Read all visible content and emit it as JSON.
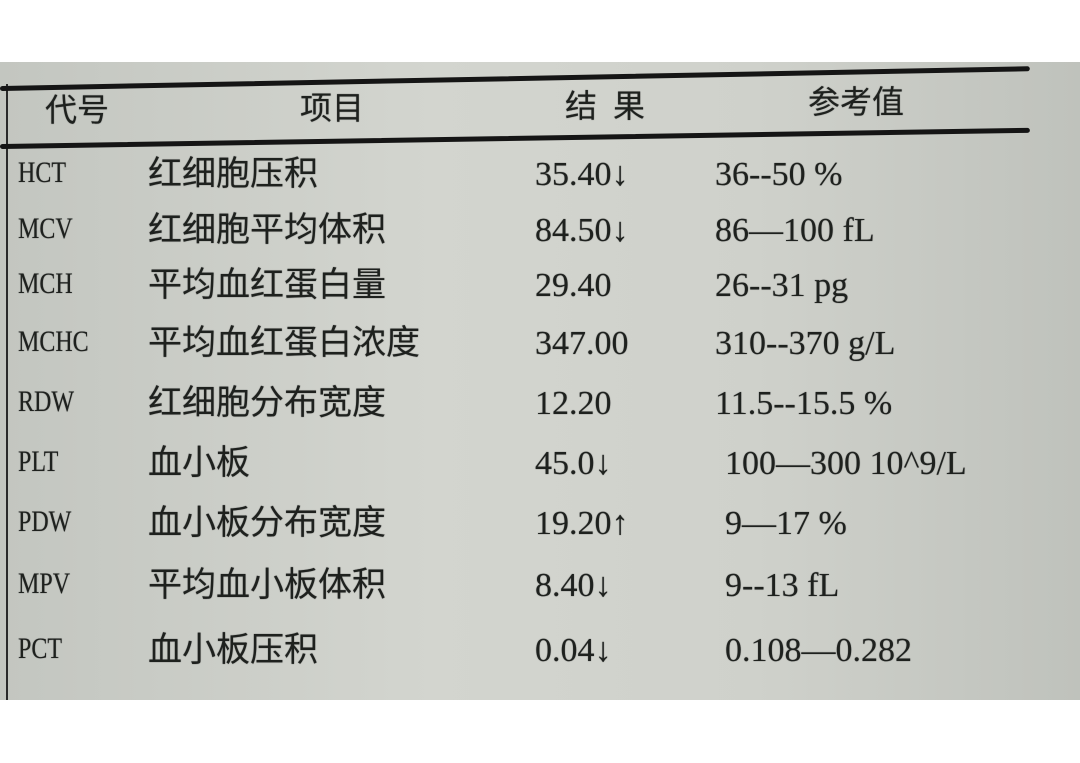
{
  "headers": {
    "code": "代号",
    "item": "项目",
    "result": "结  果",
    "reference": "参考值"
  },
  "rows": [
    {
      "code": "HCT",
      "item": "红细胞压积",
      "result": "35.40↓",
      "reference": "36--50 %"
    },
    {
      "code": "MCV",
      "item": "红细胞平均体积",
      "result": "84.50↓",
      "reference": "86—100 fL"
    },
    {
      "code": "MCH",
      "item": "平均血红蛋白量",
      "result": "29.40",
      "reference": "26--31 pg"
    },
    {
      "code": "MCHC",
      "item": "平均血红蛋白浓度",
      "result": "347.00",
      "reference": "310--370 g/L"
    },
    {
      "code": "RDW",
      "item": "红细胞分布宽度",
      "result": "12.20",
      "reference": "11.5--15.5 %"
    },
    {
      "code": "PLT",
      "item": "血小板",
      "result": "45.0↓",
      "reference": "100—300 10^9/L"
    },
    {
      "code": "PDW",
      "item": "血小板分布宽度",
      "result": "19.20↑",
      "reference": "9—17 %"
    },
    {
      "code": "MPV",
      "item": "平均血小板体积",
      "result": "8.40↓",
      "reference": "9--13 fL"
    },
    {
      "code": "PCT",
      "item": "血小板压积",
      "result": "0.04↓",
      "reference": "0.108—0.282"
    }
  ]
}
